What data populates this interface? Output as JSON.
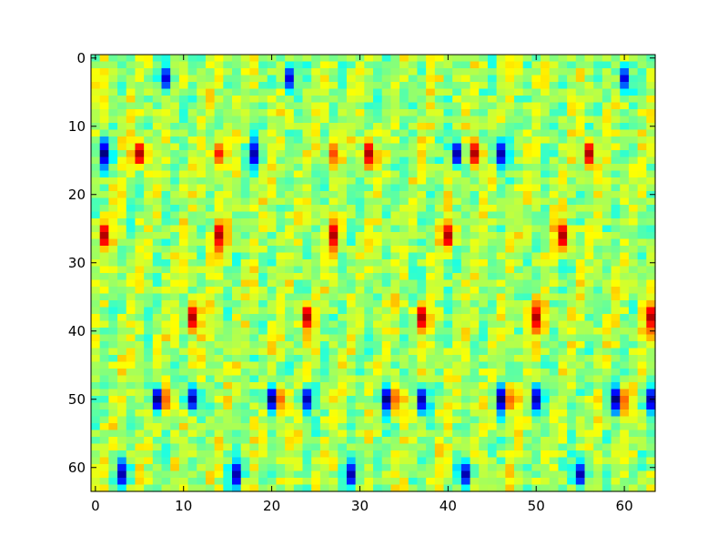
{
  "chart_data": {
    "type": "heatmap",
    "title": "",
    "xlabel": "",
    "ylabel": "",
    "rows": 64,
    "cols": 64,
    "colormap": "jet",
    "value_range": [
      -1,
      1
    ],
    "interpolation": "bilinear",
    "x_origin": "top-left",
    "xlim": [
      -0.5,
      63.5
    ],
    "ylim": [
      63.5,
      -0.5
    ],
    "xticks": [
      0,
      10,
      20,
      30,
      40,
      50,
      60
    ],
    "xtick_labels": [
      "0",
      "10",
      "20",
      "30",
      "40",
      "50",
      "60"
    ],
    "yticks": [
      0,
      10,
      20,
      30,
      40,
      50,
      60
    ],
    "ytick_labels": [
      "0",
      "10",
      "20",
      "30",
      "40",
      "50",
      "60"
    ],
    "grid": false,
    "legend": "none",
    "structure": {
      "column_period": 4.2,
      "notable_rows": [
        3,
        14,
        26,
        38,
        50,
        61
      ],
      "description_of_pattern": ""
    },
    "extremes": [
      {
        "row": 3,
        "col": 8,
        "value": -0.8
      },
      {
        "row": 3,
        "col": 22,
        "value": -0.8
      },
      {
        "row": 3,
        "col": 60,
        "value": -0.8
      },
      {
        "row": 14,
        "col": 1,
        "value": -1.0
      },
      {
        "row": 14,
        "col": 5,
        "value": 0.9
      },
      {
        "row": 14,
        "col": 14,
        "value": 0.7
      },
      {
        "row": 14,
        "col": 18,
        "value": -0.9
      },
      {
        "row": 14,
        "col": 27,
        "value": 0.6
      },
      {
        "row": 14,
        "col": 31,
        "value": 0.9
      },
      {
        "row": 14,
        "col": 41,
        "value": -0.9
      },
      {
        "row": 14,
        "col": 43,
        "value": 0.9
      },
      {
        "row": 14,
        "col": 46,
        "value": -0.9
      },
      {
        "row": 14,
        "col": 56,
        "value": 0.9
      },
      {
        "row": 26,
        "col": 1,
        "value": 0.9
      },
      {
        "row": 26,
        "col": 14,
        "value": 0.9
      },
      {
        "row": 26,
        "col": 27,
        "value": 0.9
      },
      {
        "row": 26,
        "col": 40,
        "value": 0.9
      },
      {
        "row": 26,
        "col": 53,
        "value": 0.9
      },
      {
        "row": 38,
        "col": 11,
        "value": 0.9
      },
      {
        "row": 38,
        "col": 24,
        "value": 0.9
      },
      {
        "row": 38,
        "col": 37,
        "value": 0.9
      },
      {
        "row": 38,
        "col": 50,
        "value": 0.9
      },
      {
        "row": 38,
        "col": 63,
        "value": 0.9
      },
      {
        "row": 50,
        "col": 8,
        "value": 0.9
      },
      {
        "row": 50,
        "col": 7,
        "value": -1.0
      },
      {
        "row": 50,
        "col": 11,
        "value": -0.9
      },
      {
        "row": 50,
        "col": 21,
        "value": 0.9
      },
      {
        "row": 50,
        "col": 20,
        "value": -1.0
      },
      {
        "row": 50,
        "col": 24,
        "value": -0.9
      },
      {
        "row": 50,
        "col": 34,
        "value": 0.9
      },
      {
        "row": 50,
        "col": 33,
        "value": -1.0
      },
      {
        "row": 50,
        "col": 37,
        "value": -0.9
      },
      {
        "row": 50,
        "col": 47,
        "value": 0.9
      },
      {
        "row": 50,
        "col": 46,
        "value": -1.0
      },
      {
        "row": 50,
        "col": 50,
        "value": -0.9
      },
      {
        "row": 50,
        "col": 60,
        "value": 0.9
      },
      {
        "row": 50,
        "col": 59,
        "value": -1.0
      },
      {
        "row": 50,
        "col": 63,
        "value": -0.9
      },
      {
        "row": 61,
        "col": 3,
        "value": -0.9
      },
      {
        "row": 61,
        "col": 16,
        "value": -0.9
      },
      {
        "row": 61,
        "col": 29,
        "value": -0.9
      },
      {
        "row": 61,
        "col": 42,
        "value": -0.9
      },
      {
        "row": 61,
        "col": 55,
        "value": -0.9
      }
    ]
  }
}
